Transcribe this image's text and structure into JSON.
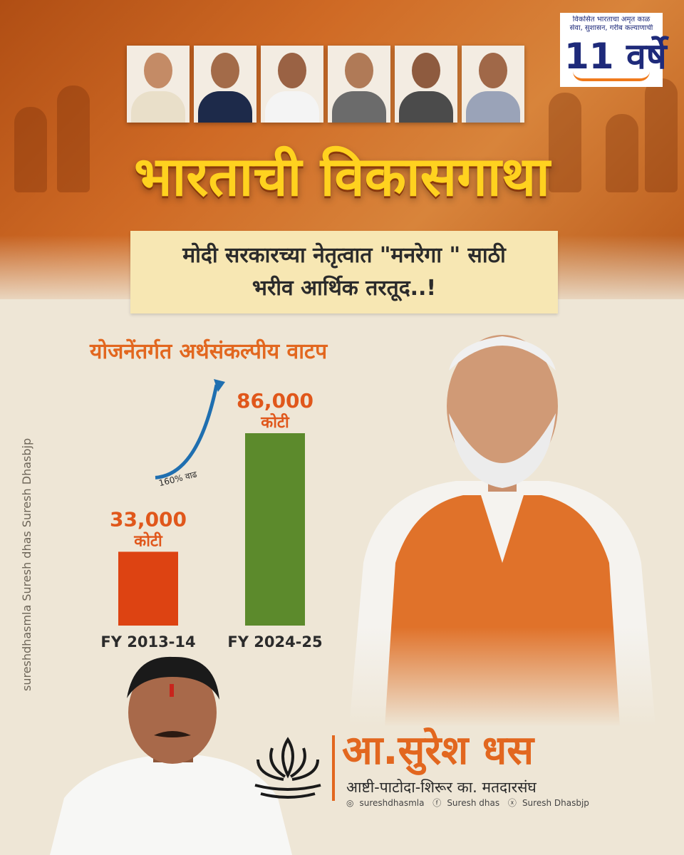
{
  "badge": {
    "top_text": "विकसित भारताचा अमृत काळ",
    "subline": "सेवा, सुशासन, गरीब कल्याणाची",
    "years": "11 वर्षे"
  },
  "header": {
    "title": "भारताची विकासगाथा",
    "subtitle_line1": "मोदी सरकारच्या नेतृत्वात \"मनरेगा \" साठी",
    "subtitle_line2": "भरीव आर्थिक तरतूद..!"
  },
  "chart_data": {
    "type": "bar",
    "title": "योजनेंतर्गत अर्थसंकल्पीय वाटप",
    "categories": [
      "FY 2013-14",
      "FY 2024-25"
    ],
    "values": [
      33000,
      86000
    ],
    "value_labels": [
      "33,000",
      "86,000"
    ],
    "unit_label": "कोटी",
    "bar_colors": [
      "#dd4312",
      "#5c8a2c"
    ],
    "value_label_color": "#e0571b",
    "ylim": [
      0,
      86000
    ],
    "annotation": "160% वाढ",
    "grid": false,
    "legend": "none"
  },
  "side_handles": "sureshdhasmla  Suresh dhas  Suresh Dhasbjp",
  "candidate": {
    "name": "आ.सुरेश धस",
    "constituency": "आष्टी-पाटोदा-शिरूर का. मतदारसंघ",
    "instagram": "sureshdhasmla",
    "facebook": "Suresh dhas",
    "x": "Suresh Dhasbjp"
  },
  "colors": {
    "accent": "#e2671f",
    "title_yellow": "#ffd21f",
    "subtitle_bg": "#f7e7b3",
    "background": "#eee6d6"
  }
}
